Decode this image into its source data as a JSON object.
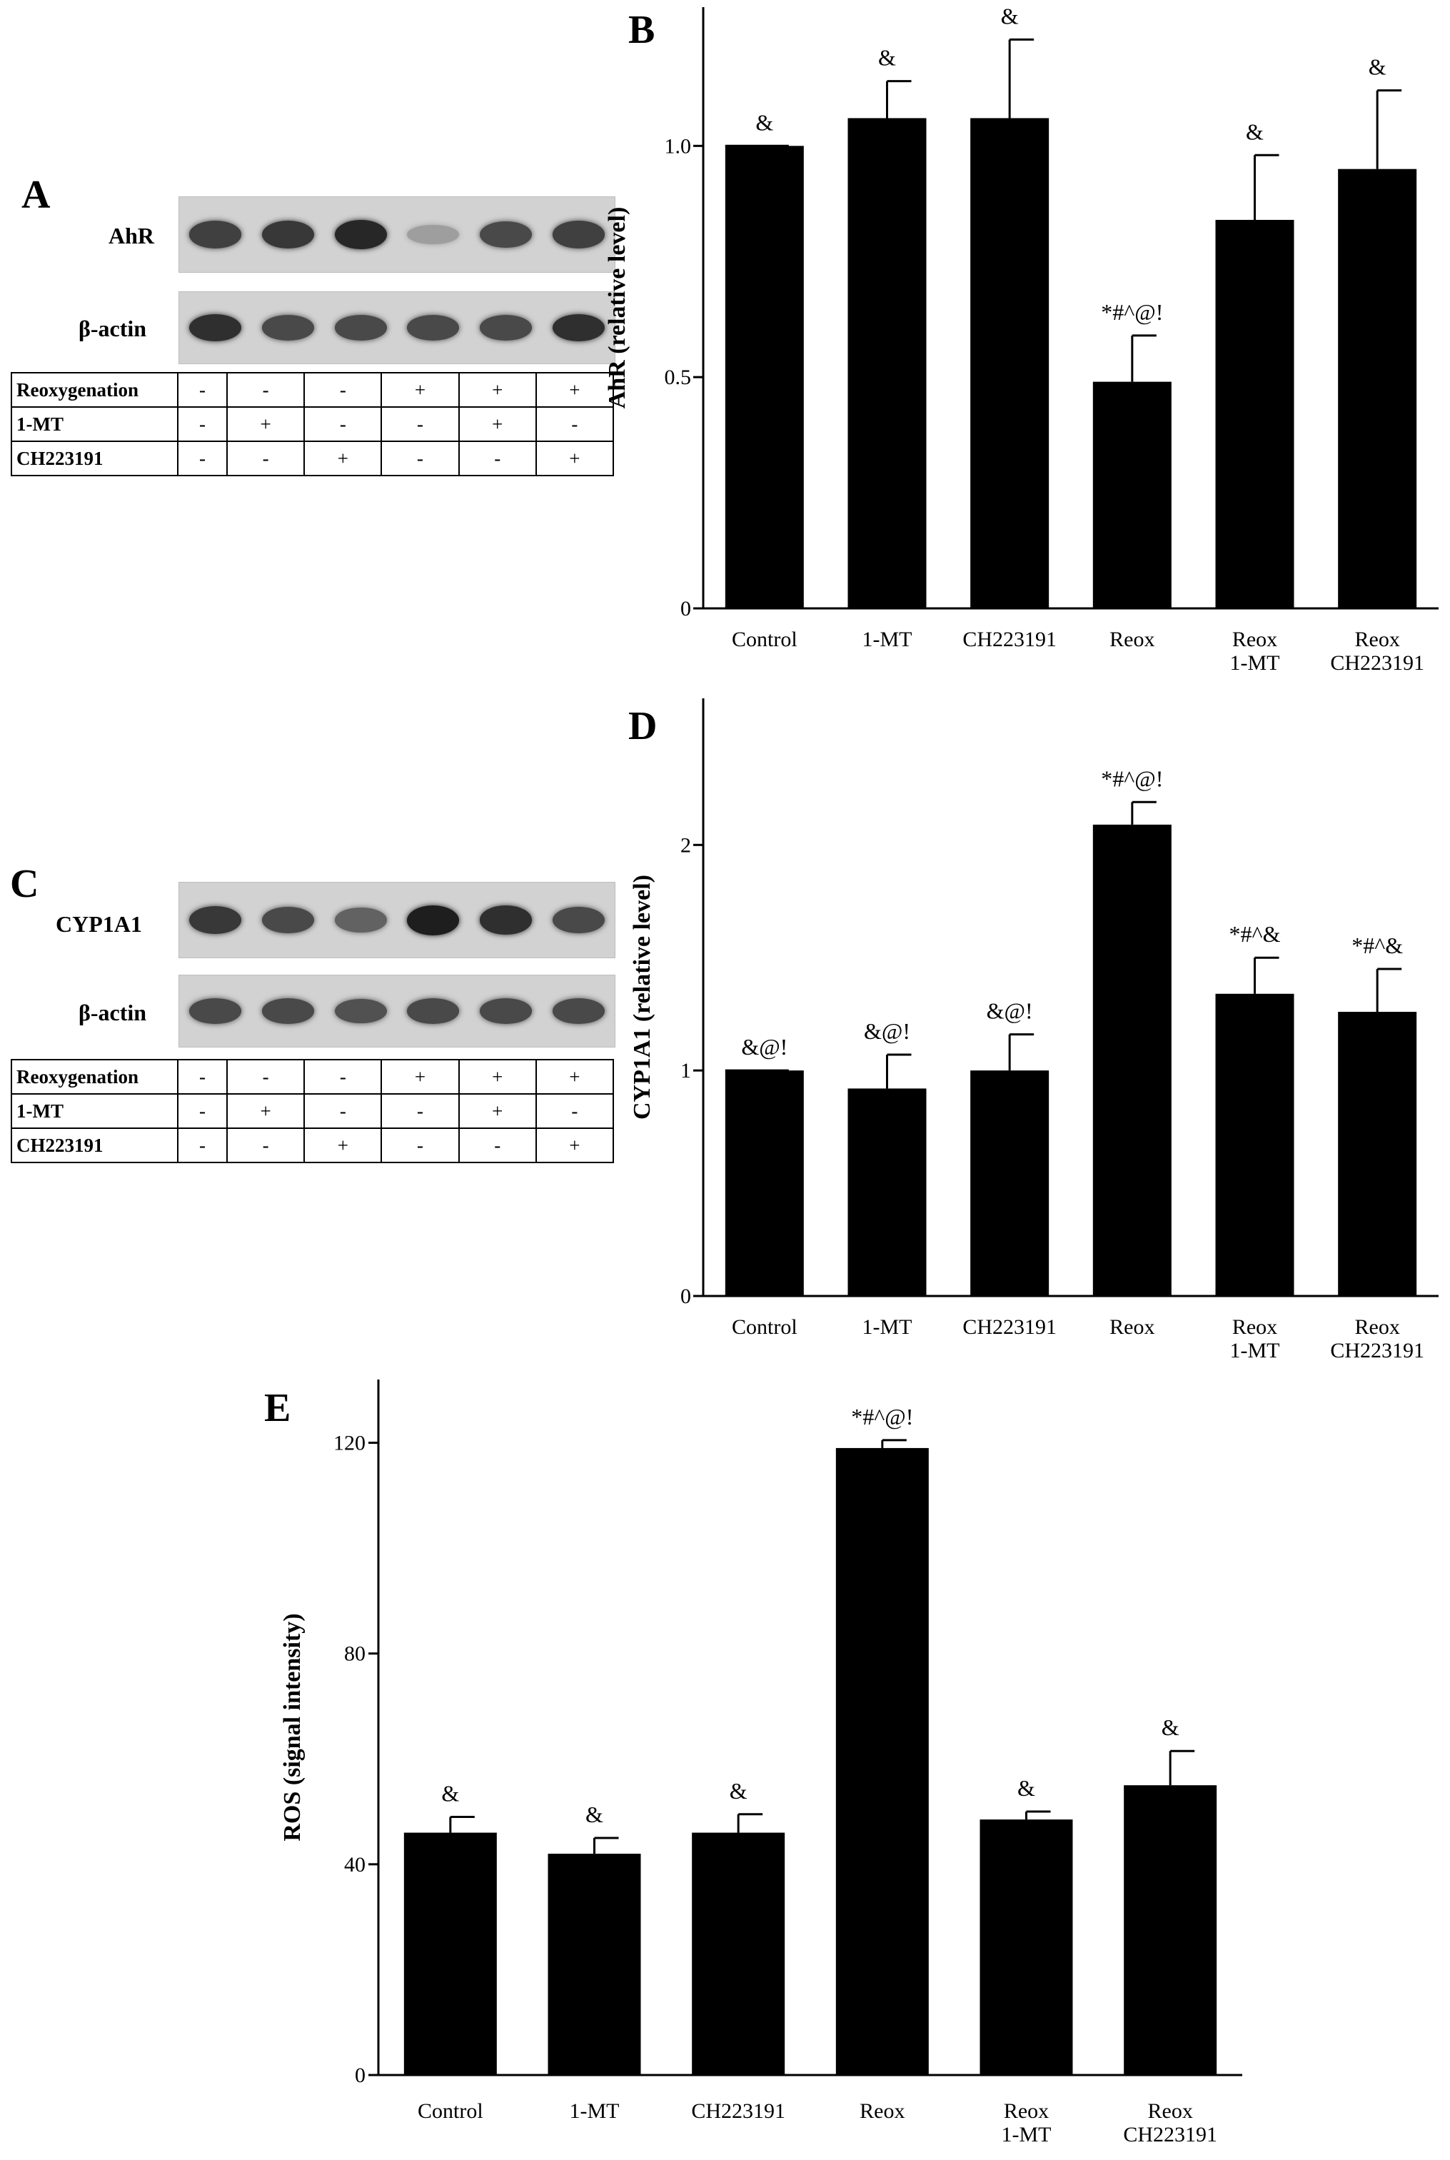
{
  "panels": {
    "a": {
      "letter": "A",
      "blots": [
        {
          "label": "AhR",
          "intensity": [
            0.8,
            0.85,
            0.95,
            0.25,
            0.75,
            0.8
          ]
        },
        {
          "label": "β-actin",
          "intensity": [
            0.9,
            0.75,
            0.75,
            0.75,
            0.75,
            0.9
          ]
        }
      ]
    },
    "c": {
      "letter": "C",
      "blots": [
        {
          "label": "CYP1A1",
          "intensity": [
            0.85,
            0.75,
            0.6,
            1.0,
            0.9,
            0.75
          ]
        },
        {
          "label": "β-actin",
          "intensity": [
            0.75,
            0.75,
            0.7,
            0.75,
            0.75,
            0.75
          ]
        }
      ]
    },
    "conditions": [
      {
        "label": "Reoxygenation",
        "values": [
          "-",
          "-",
          "-",
          "+",
          "+",
          "+"
        ]
      },
      {
        "label": "1-MT",
        "values": [
          "-",
          "+",
          "-",
          "-",
          "+",
          "-"
        ]
      },
      {
        "label": "CH223191",
        "values": [
          "-",
          "-",
          "+",
          "-",
          "-",
          "+"
        ]
      }
    ]
  },
  "chart_data": [
    {
      "panel": "B",
      "type": "bar",
      "ylabel": "AhR (relative level)",
      "categories": [
        [
          "Control"
        ],
        [
          "1-MT"
        ],
        [
          "CH223191"
        ],
        [
          "Reox"
        ],
        [
          "Reox",
          "1-MT"
        ],
        [
          "Reox",
          "CH223191"
        ]
      ],
      "values": [
        1.0,
        1.06,
        1.06,
        0.49,
        0.84,
        0.95
      ],
      "errors": [
        0.0,
        0.08,
        0.17,
        0.1,
        0.14,
        0.17
      ],
      "annotations": [
        "&",
        "&",
        "&",
        "*#^@!",
        "&",
        "&"
      ],
      "ylim": [
        0,
        1.3
      ],
      "yticks": [
        0,
        0.5,
        1.0
      ],
      "ytick_labels": [
        "0",
        "0.5",
        "1.0"
      ],
      "grid": false
    },
    {
      "panel": "D",
      "type": "bar",
      "ylabel": "CYP1A1 (relative level)",
      "categories": [
        [
          "Control"
        ],
        [
          "1-MT"
        ],
        [
          "CH223191"
        ],
        [
          "Reox"
        ],
        [
          "Reox",
          "1-MT"
        ],
        [
          "Reox",
          "CH223191"
        ]
      ],
      "values": [
        1.0,
        0.92,
        1.0,
        2.09,
        1.34,
        1.26
      ],
      "errors": [
        0.0,
        0.15,
        0.16,
        0.1,
        0.16,
        0.19
      ],
      "annotations": [
        "&@!",
        "&@!",
        "&@!",
        "*#^@!",
        "*#^&",
        "*#^&"
      ],
      "ylim": [
        0,
        2.65
      ],
      "yticks": [
        0,
        1,
        2
      ],
      "ytick_labels": [
        "0",
        "1",
        "2"
      ],
      "grid": false
    },
    {
      "panel": "E",
      "type": "bar",
      "ylabel": "ROS (signal intensity)",
      "categories": [
        [
          "Control"
        ],
        [
          "1-MT"
        ],
        [
          "CH223191"
        ],
        [
          "Reox"
        ],
        [
          "Reox",
          "1-MT"
        ],
        [
          "Reox",
          "CH223191"
        ]
      ],
      "values": [
        46,
        42,
        46,
        119,
        48.5,
        55
      ],
      "errors": [
        3,
        3,
        3.5,
        1.5,
        1.5,
        6.5
      ],
      "annotations": [
        "&",
        "&",
        "&",
        "*#^@!",
        "&",
        "&"
      ],
      "ylim": [
        0,
        132
      ],
      "yticks": [
        0,
        40,
        80,
        120
      ],
      "ytick_labels": [
        "0",
        "40",
        "80",
        "120"
      ],
      "grid": false
    }
  ]
}
